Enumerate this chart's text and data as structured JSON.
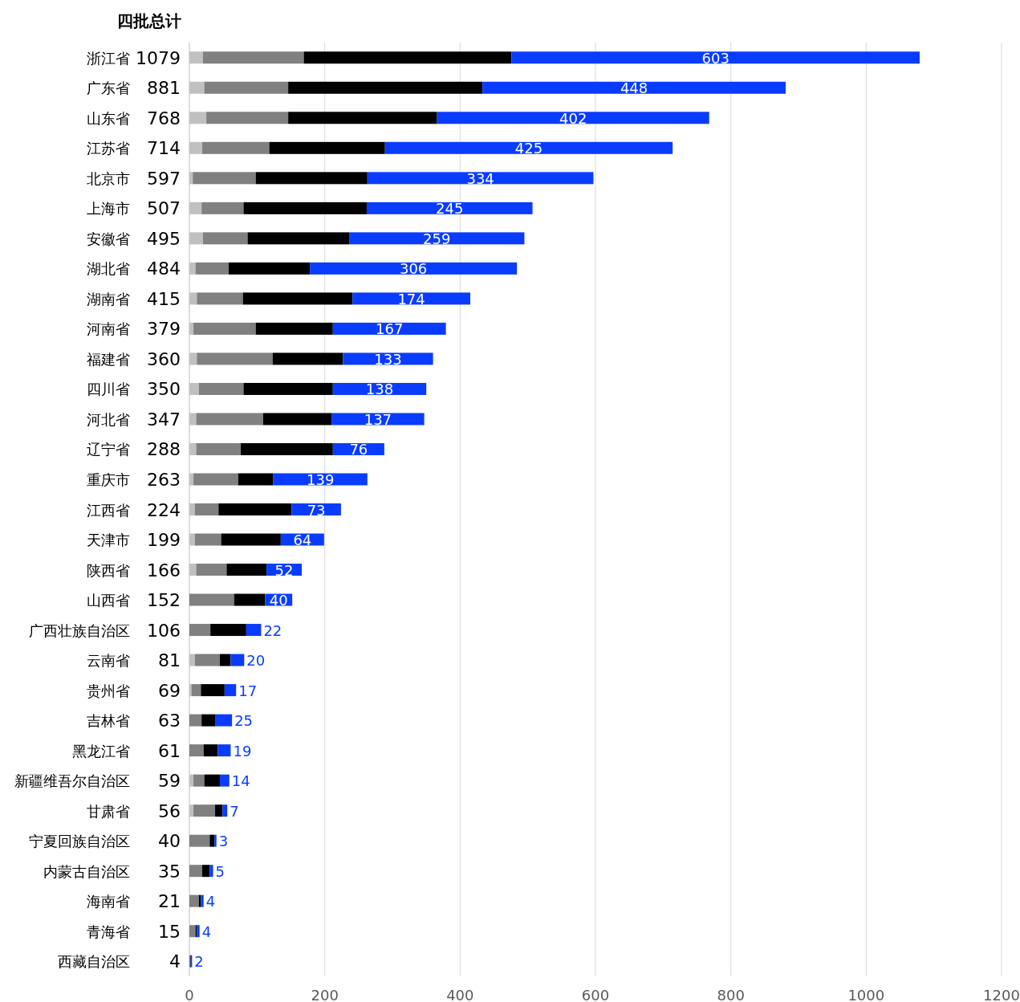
{
  "chart_data": {
    "type": "bar",
    "orientation": "horizontal",
    "stacked": true,
    "title": "四批总计",
    "categories": [
      "浙江省",
      "广东省",
      "山东省",
      "江苏省",
      "北京市",
      "上海市",
      "安徽省",
      "湖北省",
      "湖南省",
      "河南省",
      "福建省",
      "四川省",
      "河北省",
      "辽宁省",
      "重庆市",
      "江西省",
      "天津市",
      "陕西省",
      "山西省",
      "广西壮族自治区",
      "云南省",
      "贵州省",
      "吉林省",
      "黑龙江省",
      "新疆维吾尔自治区",
      "甘肃省",
      "宁夏回族自治区",
      "内蒙古自治区",
      "海南省",
      "青海省",
      "西藏自治区"
    ],
    "totals": [
      "1079",
      "881",
      "768",
      "714",
      "597",
      "507",
      "495",
      "484",
      "415",
      "379",
      "360",
      "350",
      "347",
      "288",
      "263",
      "224",
      "199",
      "166",
      "152",
      "106",
      "81",
      "69",
      "63",
      "61",
      "59",
      "56",
      "40",
      "35",
      "21",
      "15",
      "4"
    ],
    "series": [
      {
        "color": "#c0c0c0",
        "values": [
          20,
          22,
          25,
          19,
          5,
          18,
          20,
          9,
          11,
          6,
          11,
          14,
          10,
          10,
          6,
          8,
          8,
          10,
          0,
          0,
          8,
          3,
          0,
          0,
          6,
          6,
          0,
          0,
          0,
          0,
          0
        ]
      },
      {
        "color": "#808080",
        "values": [
          149,
          124,
          121,
          99,
          93,
          62,
          66,
          49,
          68,
          92,
          112,
          66,
          99,
          66,
          66,
          35,
          39,
          45,
          66,
          31,
          37,
          14,
          18,
          21,
          16,
          32,
          30,
          19,
          14,
          9,
          1
        ]
      },
      {
        "color": "#000000",
        "values": [
          307,
          287,
          220,
          171,
          165,
          182,
          150,
          120,
          162,
          114,
          104,
          132,
          101,
          136,
          52,
          108,
          88,
          59,
          46,
          53,
          16,
          35,
          20,
          21,
          23,
          11,
          7,
          11,
          3,
          2,
          1
        ]
      },
      {
        "color": "#0a3cff",
        "values": [
          603,
          448,
          402,
          425,
          334,
          245,
          259,
          306,
          174,
          167,
          133,
          138,
          137,
          76,
          139,
          73,
          64,
          52,
          40,
          22,
          20,
          17,
          25,
          19,
          14,
          7,
          3,
          5,
          4,
          4,
          2
        ],
        "value_labels": [
          "603",
          "448",
          "402",
          "425",
          "334",
          "245",
          "259",
          "306",
          "174",
          "167",
          "133",
          "138",
          "137",
          "76",
          "139",
          "73",
          "64",
          "52",
          "40",
          "22",
          "20",
          "17",
          "25",
          "19",
          "14",
          "7",
          "3",
          "5",
          "4",
          "4",
          "2"
        ]
      }
    ],
    "xlim": [
      0,
      1200
    ],
    "xticks": [
      0,
      200,
      400,
      600,
      800,
      1000,
      1200
    ],
    "grid": "x"
  }
}
